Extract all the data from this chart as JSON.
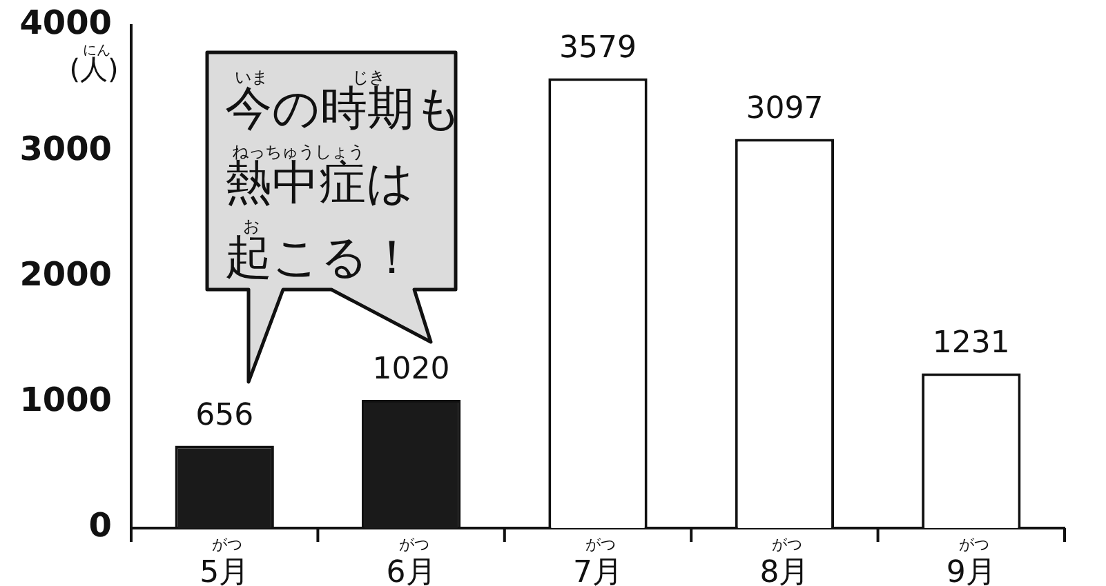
{
  "chart_data": {
    "type": "bar",
    "categories": [
      "5月",
      "6月",
      "7月",
      "8月",
      "9月"
    ],
    "values": [
      656,
      1020,
      3579,
      3097,
      1231
    ],
    "colors": [
      "#1a1a1a",
      "#1a1a1a",
      "#ffffff",
      "#ffffff",
      "#ffffff"
    ],
    "ylabel": "(人)",
    "ylim": [
      0,
      4000
    ],
    "yticks": [
      0,
      1000,
      2000,
      3000,
      4000
    ],
    "grid": false,
    "legend": false,
    "data_labels": true,
    "annotations": [
      "今の時期も熱中症は起こる！",
      "にん",
      "いま",
      "じき",
      "ねっちゅうしょう",
      "お",
      "がつ",
      "がつ",
      "がつ",
      "がつ",
      "がつ"
    ]
  }
}
